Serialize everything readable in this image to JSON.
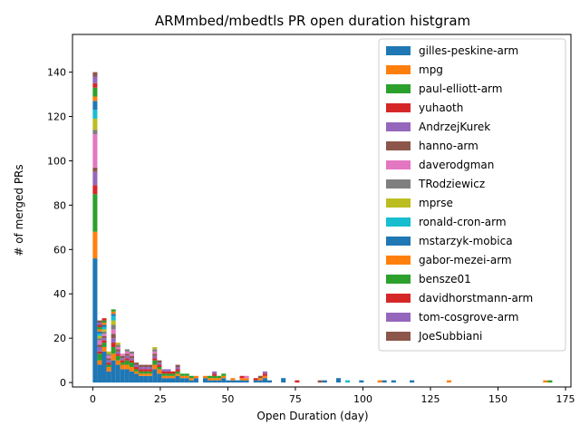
{
  "chart_data": {
    "type": "bar",
    "stacked": true,
    "title": "ARMmbed/mbedtls PR open duration histgram",
    "xlabel": "Open Duration (day)",
    "ylabel": "# of merged PRs",
    "xlim": [
      -7.5,
      177
    ],
    "ylim": [
      -2,
      157
    ],
    "xticks": [
      0,
      25,
      50,
      75,
      100,
      125,
      150,
      175
    ],
    "yticks": [
      0,
      20,
      40,
      60,
      80,
      100,
      120,
      140
    ],
    "bin_width": 1.7,
    "grid": false,
    "legend_position": "top-right",
    "series": [
      {
        "name": "gilles-peskine-arm",
        "color": "#1f77b4"
      },
      {
        "name": "mpg",
        "color": "#ff7f0e"
      },
      {
        "name": "paul-elliott-arm",
        "color": "#2ca02c"
      },
      {
        "name": "yuhaoth",
        "color": "#d62728"
      },
      {
        "name": "AndrzejKurek",
        "color": "#9467bd"
      },
      {
        "name": "hanno-arm",
        "color": "#8c564b"
      },
      {
        "name": "daverodgman",
        "color": "#e377c2"
      },
      {
        "name": "TRodziewicz",
        "color": "#7f7f7f"
      },
      {
        "name": "mprse",
        "color": "#bcbd22"
      },
      {
        "name": "ronald-cron-arm",
        "color": "#17becf"
      },
      {
        "name": "mstarzyk-mobica",
        "color": "#1f77b4"
      },
      {
        "name": "gabor-mezei-arm",
        "color": "#ff7f0e"
      },
      {
        "name": "bensze01",
        "color": "#2ca02c"
      },
      {
        "name": "davidhorstmann-arm",
        "color": "#d62728"
      },
      {
        "name": "tom-cosgrove-arm",
        "color": "#9467bd"
      },
      {
        "name": "JoeSubbiani",
        "color": "#8c564b"
      }
    ],
    "bins": [
      {
        "x": 0.0,
        "counts": [
          56,
          12,
          17,
          4,
          6,
          2,
          15,
          2,
          5,
          4,
          4,
          2,
          4,
          2,
          3,
          2
        ]
      },
      {
        "x": 1.7,
        "counts": [
          8,
          2,
          3,
          1,
          2,
          1,
          2,
          1,
          1,
          1,
          1,
          1,
          1,
          1,
          1,
          1
        ]
      },
      {
        "x": 3.4,
        "counts": [
          14,
          2,
          2,
          1,
          1,
          1,
          1,
          1,
          1,
          1,
          1,
          1,
          1,
          1,
          0,
          0
        ]
      },
      {
        "x": 5.1,
        "counts": [
          5,
          2,
          1,
          1,
          1,
          1,
          1,
          1,
          1,
          0,
          0,
          0,
          0,
          0,
          0,
          0
        ]
      },
      {
        "x": 6.8,
        "counts": [
          10,
          3,
          3,
          2,
          2,
          2,
          2,
          2,
          2,
          2,
          1,
          1,
          1,
          0,
          0,
          0
        ]
      },
      {
        "x": 8.5,
        "counts": [
          8,
          2,
          2,
          1,
          1,
          1,
          1,
          1,
          1,
          0,
          0,
          0,
          0,
          0,
          0,
          0
        ]
      },
      {
        "x": 10.2,
        "counts": [
          6,
          2,
          1,
          1,
          1,
          1,
          1,
          0,
          0,
          0,
          0,
          0,
          0,
          0,
          0,
          0
        ]
      },
      {
        "x": 11.9,
        "counts": [
          6,
          2,
          2,
          1,
          1,
          1,
          1,
          1,
          0,
          0,
          0,
          0,
          0,
          0,
          0,
          0
        ]
      },
      {
        "x": 13.6,
        "counts": [
          5,
          2,
          2,
          1,
          1,
          1,
          1,
          1,
          0,
          0,
          0,
          0,
          0,
          0,
          0,
          0
        ]
      },
      {
        "x": 15.3,
        "counts": [
          4,
          1,
          1,
          1,
          1,
          1,
          0,
          0,
          0,
          0,
          0,
          0,
          0,
          0,
          0,
          0
        ]
      },
      {
        "x": 17.0,
        "counts": [
          3,
          1,
          1,
          1,
          1,
          1,
          0,
          0,
          0,
          0,
          0,
          0,
          0,
          0,
          0,
          0
        ]
      },
      {
        "x": 18.7,
        "counts": [
          3,
          1,
          1,
          1,
          1,
          1,
          0,
          0,
          0,
          0,
          0,
          0,
          0,
          0,
          0,
          0
        ]
      },
      {
        "x": 20.4,
        "counts": [
          3,
          1,
          1,
          1,
          1,
          1,
          0,
          0,
          0,
          0,
          0,
          0,
          0,
          0,
          0,
          0
        ]
      },
      {
        "x": 22.1,
        "counts": [
          6,
          2,
          2,
          1,
          1,
          1,
          1,
          1,
          1,
          0,
          0,
          0,
          0,
          0,
          0,
          0
        ]
      },
      {
        "x": 23.8,
        "counts": [
          4,
          2,
          1,
          1,
          1,
          1,
          0,
          0,
          0,
          0,
          0,
          0,
          0,
          0,
          0,
          0
        ]
      },
      {
        "x": 25.5,
        "counts": [
          2,
          1,
          1,
          1,
          1,
          0,
          0,
          0,
          0,
          0,
          0,
          0,
          0,
          0,
          0,
          0
        ]
      },
      {
        "x": 27.2,
        "counts": [
          2,
          1,
          1,
          1,
          1,
          0,
          0,
          0,
          0,
          0,
          0,
          0,
          0,
          0,
          0,
          0
        ]
      },
      {
        "x": 28.9,
        "counts": [
          2,
          1,
          1,
          1,
          0,
          0,
          0,
          0,
          0,
          0,
          0,
          0,
          0,
          0,
          0,
          0
        ]
      },
      {
        "x": 30.6,
        "counts": [
          3,
          1,
          1,
          1,
          1,
          1,
          0,
          0,
          0,
          0,
          0,
          0,
          0,
          0,
          0,
          0
        ]
      },
      {
        "x": 32.3,
        "counts": [
          2,
          1,
          1,
          0,
          0,
          0,
          0,
          0,
          0,
          0,
          0,
          0,
          0,
          0,
          0,
          0
        ]
      },
      {
        "x": 34.0,
        "counts": [
          2,
          1,
          1,
          0,
          0,
          0,
          0,
          0,
          0,
          0,
          0,
          0,
          0,
          0,
          0,
          0
        ]
      },
      {
        "x": 35.7,
        "counts": [
          1,
          1,
          1,
          0,
          0,
          0,
          0,
          0,
          0,
          0,
          0,
          0,
          0,
          0,
          0,
          0
        ]
      },
      {
        "x": 37.4,
        "counts": [
          2,
          1,
          0,
          0,
          0,
          0,
          0,
          0,
          0,
          0,
          0,
          0,
          0,
          0,
          0,
          0
        ]
      },
      {
        "x": 40.8,
        "counts": [
          2,
          1,
          0,
          0,
          0,
          0,
          0,
          0,
          0,
          0,
          0,
          0,
          0,
          0,
          0,
          0
        ]
      },
      {
        "x": 42.5,
        "counts": [
          1,
          1,
          1,
          0,
          0,
          0,
          0,
          0,
          0,
          0,
          0,
          0,
          0,
          0,
          0,
          0
        ]
      },
      {
        "x": 44.2,
        "counts": [
          1,
          1,
          1,
          1,
          1,
          0,
          0,
          0,
          0,
          0,
          0,
          0,
          0,
          0,
          0,
          0
        ]
      },
      {
        "x": 45.9,
        "counts": [
          1,
          1,
          1,
          0,
          0,
          0,
          0,
          0,
          0,
          0,
          0,
          0,
          0,
          0,
          0,
          0
        ]
      },
      {
        "x": 47.6,
        "counts": [
          2,
          1,
          1,
          0,
          0,
          0,
          0,
          0,
          0,
          0,
          0,
          0,
          0,
          0,
          0,
          0
        ]
      },
      {
        "x": 49.3,
        "counts": [
          1,
          0,
          0,
          0,
          0,
          0,
          0,
          0,
          0,
          0,
          0,
          0,
          0,
          0,
          0,
          0
        ]
      },
      {
        "x": 51.0,
        "counts": [
          1,
          1,
          0,
          0,
          0,
          0,
          0,
          0,
          0,
          0,
          0,
          0,
          0,
          0,
          0,
          0
        ]
      },
      {
        "x": 52.7,
        "counts": [
          1,
          0,
          0,
          0,
          0,
          0,
          0,
          0,
          0,
          0,
          0,
          0,
          0,
          0,
          0,
          0
        ]
      },
      {
        "x": 54.4,
        "counts": [
          1,
          1,
          0,
          1,
          0,
          0,
          0,
          0,
          0,
          0,
          0,
          0,
          0,
          0,
          0,
          0
        ]
      },
      {
        "x": 56.1,
        "counts": [
          1,
          1,
          0,
          0,
          0,
          0,
          1,
          0,
          0,
          0,
          0,
          0,
          0,
          0,
          0,
          0
        ]
      },
      {
        "x": 59.5,
        "counts": [
          1,
          0,
          0,
          1,
          0,
          0,
          0,
          0,
          0,
          0,
          0,
          0,
          0,
          0,
          0,
          0
        ]
      },
      {
        "x": 61.2,
        "counts": [
          1,
          1,
          0,
          0,
          0,
          1,
          0,
          0,
          0,
          0,
          0,
          0,
          0,
          0,
          0,
          0
        ]
      },
      {
        "x": 62.9,
        "counts": [
          2,
          1,
          0,
          1,
          1,
          0,
          0,
          0,
          0,
          0,
          0,
          0,
          0,
          0,
          0,
          0
        ]
      },
      {
        "x": 64.6,
        "counts": [
          1,
          0,
          0,
          0,
          0,
          0,
          0,
          0,
          0,
          0,
          0,
          0,
          0,
          0,
          0,
          0
        ]
      },
      {
        "x": 69.7,
        "counts": [
          2,
          0,
          0,
          0,
          0,
          0,
          0,
          0,
          0,
          0,
          0,
          0,
          0,
          0,
          0,
          0
        ]
      },
      {
        "x": 74.8,
        "counts": [
          0,
          0,
          0,
          1,
          0,
          0,
          0,
          0,
          0,
          0,
          0,
          0,
          0,
          0,
          0,
          0
        ]
      },
      {
        "x": 83.3,
        "counts": [
          0,
          0,
          0,
          0,
          0,
          1,
          0,
          0,
          0,
          0,
          0,
          0,
          0,
          0,
          0,
          0
        ]
      },
      {
        "x": 85.0,
        "counts": [
          1,
          0,
          0,
          0,
          0,
          0,
          0,
          0,
          0,
          0,
          0,
          0,
          0,
          0,
          0,
          0
        ]
      },
      {
        "x": 90.1,
        "counts": [
          2,
          0,
          0,
          0,
          0,
          0,
          0,
          0,
          0,
          0,
          0,
          0,
          0,
          0,
          0,
          0
        ]
      },
      {
        "x": 93.5,
        "counts": [
          0,
          0,
          0,
          0,
          0,
          0,
          0,
          0,
          0,
          1,
          0,
          0,
          0,
          0,
          0,
          0
        ]
      },
      {
        "x": 98.6,
        "counts": [
          1,
          0,
          0,
          0,
          0,
          0,
          0,
          0,
          0,
          0,
          0,
          0,
          0,
          0,
          0,
          0
        ]
      },
      {
        "x": 105.4,
        "counts": [
          0,
          1,
          0,
          0,
          0,
          0,
          0,
          0,
          0,
          0,
          0,
          0,
          0,
          0,
          0,
          0
        ]
      },
      {
        "x": 107.1,
        "counts": [
          1,
          0,
          0,
          0,
          0,
          0,
          0,
          0,
          0,
          0,
          0,
          0,
          0,
          0,
          0,
          0
        ]
      },
      {
        "x": 110.5,
        "counts": [
          1,
          0,
          0,
          0,
          0,
          0,
          0,
          0,
          0,
          0,
          0,
          0,
          0,
          0,
          0,
          0
        ]
      },
      {
        "x": 117.3,
        "counts": [
          1,
          0,
          0,
          0,
          0,
          0,
          0,
          0,
          0,
          0,
          0,
          0,
          0,
          0,
          0,
          0
        ]
      },
      {
        "x": 131.0,
        "counts": [
          0,
          1,
          0,
          0,
          0,
          0,
          0,
          0,
          0,
          0,
          0,
          0,
          0,
          0,
          0,
          0
        ]
      },
      {
        "x": 166.7,
        "counts": [
          0,
          1,
          0,
          0,
          0,
          0,
          0,
          0,
          0,
          0,
          0,
          0,
          0,
          0,
          0,
          0
        ]
      },
      {
        "x": 168.4,
        "counts": [
          0,
          0,
          1,
          0,
          0,
          0,
          0,
          0,
          0,
          0,
          0,
          0,
          0,
          0,
          0,
          0
        ]
      }
    ]
  }
}
